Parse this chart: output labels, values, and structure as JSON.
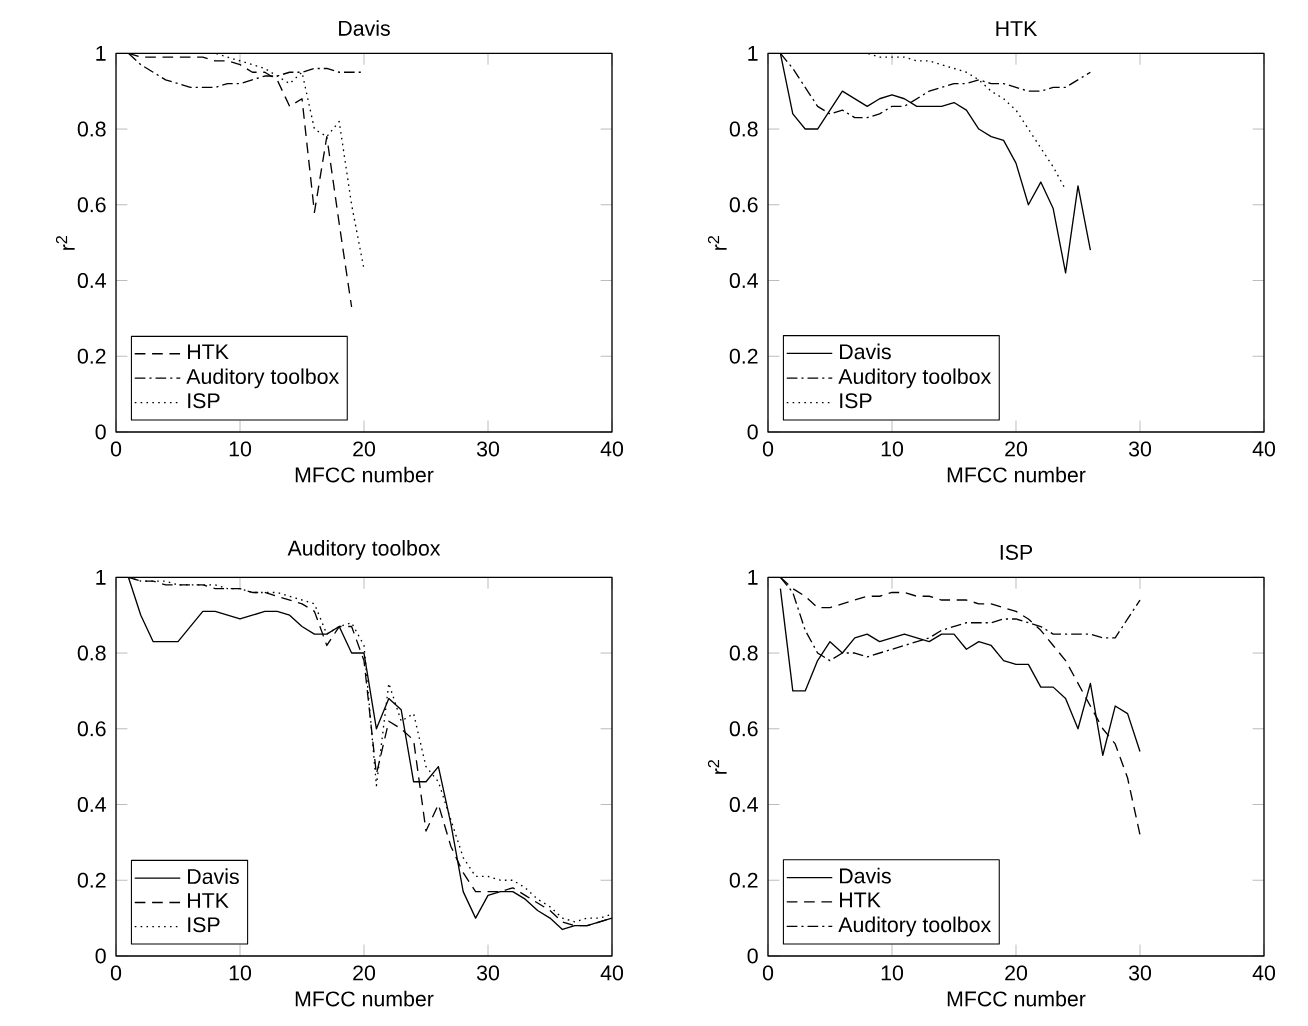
{
  "chart_data": [
    {
      "type": "line",
      "title": "Davis",
      "xlabel": "MFCC number",
      "ylabel": "r$^{2}$",
      "xlim": [
        0,
        40
      ],
      "ylim": [
        0,
        1
      ],
      "xticks": [
        0,
        10,
        20,
        30,
        40
      ],
      "yticks": [
        0,
        0.2,
        0.4,
        0.6,
        0.8,
        1
      ],
      "legend": "bottom left",
      "series": [
        {
          "name": "HTK",
          "color": "#000000",
          "line_style": "dashed",
          "x": [
            1,
            2,
            3,
            4,
            5,
            6,
            7,
            8,
            9,
            10,
            11,
            12,
            13,
            14,
            15,
            16,
            17,
            18,
            19
          ],
          "values": [
            1,
            0.99,
            0.99,
            0.99,
            0.99,
            0.99,
            0.99,
            0.98,
            0.98,
            0.97,
            0.95,
            0.95,
            0.93,
            0.86,
            0.88,
            0.58,
            0.78,
            0.55,
            0.33
          ]
        },
        {
          "name": "Auditory toolbox",
          "color": "#000000",
          "line_style": "dashdot",
          "x": [
            1,
            2,
            3,
            4,
            5,
            6,
            7,
            8,
            9,
            10,
            11,
            12,
            13,
            14,
            15,
            16,
            17,
            18,
            19,
            20
          ],
          "values": [
            1,
            0.97,
            0.95,
            0.93,
            0.92,
            0.91,
            0.91,
            0.91,
            0.92,
            0.92,
            0.93,
            0.94,
            0.94,
            0.95,
            0.95,
            0.96,
            0.96,
            0.95,
            0.95,
            0.95
          ]
        },
        {
          "name": "ISP",
          "color": "#000000",
          "line_style": "dotted",
          "x": [
            1,
            2,
            3,
            4,
            5,
            6,
            7,
            8,
            9,
            10,
            11,
            12,
            13,
            14,
            15,
            16,
            17,
            18,
            19,
            20
          ],
          "values": [
            1,
            1,
            1,
            1,
            1,
            1,
            1,
            1,
            0.99,
            0.98,
            0.97,
            0.96,
            0.94,
            0.92,
            0.95,
            0.8,
            0.78,
            0.82,
            0.6,
            0.43
          ]
        }
      ]
    },
    {
      "type": "line",
      "title": "HTK",
      "xlabel": "MFCC number",
      "ylabel": "r$^{2}$",
      "xlim": [
        0,
        40
      ],
      "ylim": [
        0,
        1
      ],
      "xticks": [
        0,
        10,
        20,
        30,
        40
      ],
      "yticks": [
        0,
        0.2,
        0.4,
        0.6,
        0.8,
        1
      ],
      "legend": "bottom left",
      "series": [
        {
          "name": "Davis",
          "color": "#000000",
          "line_style": "solid",
          "x": [
            1,
            2,
            3,
            4,
            5,
            6,
            7,
            8,
            9,
            10,
            11,
            12,
            13,
            14,
            15,
            16,
            17,
            18,
            19,
            20,
            21,
            22,
            23,
            24,
            25,
            26
          ],
          "values": [
            1,
            0.84,
            0.8,
            0.8,
            0.85,
            0.9,
            0.88,
            0.86,
            0.88,
            0.89,
            0.88,
            0.86,
            0.86,
            0.86,
            0.87,
            0.85,
            0.8,
            0.78,
            0.77,
            0.71,
            0.6,
            0.66,
            0.59,
            0.42,
            0.65,
            0.48
          ]
        },
        {
          "name": "Auditory toolbox",
          "color": "#000000",
          "line_style": "dashdot",
          "x": [
            1,
            2,
            3,
            4,
            5,
            6,
            7,
            8,
            9,
            10,
            11,
            12,
            13,
            14,
            15,
            16,
            17,
            18,
            19,
            20,
            21,
            22,
            23,
            24,
            25,
            26
          ],
          "values": [
            1,
            0.96,
            0.91,
            0.86,
            0.84,
            0.85,
            0.83,
            0.83,
            0.84,
            0.86,
            0.86,
            0.88,
            0.9,
            0.91,
            0.92,
            0.92,
            0.93,
            0.92,
            0.92,
            0.91,
            0.9,
            0.9,
            0.91,
            0.91,
            0.93,
            0.95
          ]
        },
        {
          "name": "ISP",
          "color": "#000000",
          "line_style": "dotted",
          "x": [
            1,
            2,
            3,
            4,
            5,
            6,
            7,
            8,
            9,
            10,
            11,
            12,
            13,
            14,
            15,
            16,
            17,
            18,
            19,
            20,
            21,
            22,
            23,
            24
          ],
          "values": [
            1,
            1,
            1,
            1,
            1,
            1,
            1,
            1,
            0.99,
            0.99,
            0.99,
            0.98,
            0.98,
            0.97,
            0.96,
            0.95,
            0.93,
            0.9,
            0.88,
            0.85,
            0.8,
            0.75,
            0.7,
            0.64
          ]
        }
      ]
    },
    {
      "type": "line",
      "title": "Auditory toolbox",
      "xlabel": "MFCC number",
      "xlim": [
        0,
        40
      ],
      "ylim": [
        0,
        1
      ],
      "xticks": [
        0,
        10,
        20,
        30,
        40
      ],
      "yticks": [
        0,
        0.2,
        0.4,
        0.6,
        0.8,
        1
      ],
      "legend": "bottom left",
      "series": [
        {
          "name": "Davis",
          "color": "#000000",
          "line_style": "solid",
          "x": [
            1,
            2,
            3,
            4,
            5,
            6,
            7,
            8,
            9,
            10,
            11,
            12,
            13,
            14,
            15,
            16,
            17,
            18,
            19,
            20,
            21,
            22,
            23,
            24,
            25,
            26,
            27,
            28,
            29,
            30,
            31,
            32,
            33,
            34,
            35,
            36,
            37,
            38,
            39,
            40
          ],
          "values": [
            1,
            0.9,
            0.83,
            0.83,
            0.83,
            0.87,
            0.91,
            0.91,
            0.9,
            0.89,
            0.9,
            0.91,
            0.91,
            0.9,
            0.87,
            0.85,
            0.85,
            0.87,
            0.8,
            0.8,
            0.6,
            0.68,
            0.65,
            0.46,
            0.46,
            0.5,
            0.35,
            0.17,
            0.1,
            0.16,
            0.17,
            0.17,
            0.15,
            0.12,
            0.1,
            0.07,
            0.08,
            0.08,
            0.09,
            0.1
          ]
        },
        {
          "name": "HTK",
          "color": "#000000",
          "line_style": "dashed",
          "x": [
            1,
            2,
            3,
            4,
            5,
            6,
            7,
            8,
            9,
            10,
            11,
            12,
            13,
            14,
            15,
            16,
            17,
            18,
            19,
            20,
            21,
            22,
            23,
            24,
            25,
            26,
            27,
            28,
            29,
            30,
            31,
            32,
            33,
            34,
            35,
            36,
            37,
            38,
            39,
            40
          ],
          "values": [
            1,
            0.99,
            0.99,
            0.98,
            0.98,
            0.98,
            0.98,
            0.97,
            0.97,
            0.97,
            0.96,
            0.96,
            0.95,
            0.94,
            0.93,
            0.91,
            0.82,
            0.87,
            0.87,
            0.78,
            0.48,
            0.62,
            0.6,
            0.57,
            0.33,
            0.4,
            0.29,
            0.22,
            0.17,
            0.17,
            0.17,
            0.18,
            0.16,
            0.14,
            0.12,
            0.09,
            0.08,
            0.08,
            0.09,
            0.1
          ]
        },
        {
          "name": "ISP",
          "color": "#000000",
          "line_style": "dotted",
          "x": [
            1,
            2,
            3,
            4,
            5,
            6,
            7,
            8,
            9,
            10,
            11,
            12,
            13,
            14,
            15,
            16,
            17,
            18,
            19,
            20,
            21,
            22,
            23,
            24,
            25,
            26,
            27,
            28,
            29,
            30,
            31,
            32,
            33,
            34,
            35,
            36,
            37,
            38,
            39,
            40
          ],
          "values": [
            1,
            0.99,
            0.99,
            0.99,
            0.98,
            0.98,
            0.98,
            0.98,
            0.97,
            0.97,
            0.96,
            0.96,
            0.96,
            0.95,
            0.94,
            0.93,
            0.85,
            0.87,
            0.88,
            0.82,
            0.45,
            0.72,
            0.62,
            0.64,
            0.5,
            0.46,
            0.36,
            0.26,
            0.21,
            0.21,
            0.2,
            0.2,
            0.18,
            0.15,
            0.13,
            0.1,
            0.09,
            0.1,
            0.1,
            0.11
          ]
        }
      ]
    },
    {
      "type": "line",
      "title": "ISP",
      "xlabel": "MFCC number",
      "ylabel": "r$^{2}$",
      "xlim": [
        0,
        40
      ],
      "ylim": [
        0,
        1
      ],
      "xticks": [
        0,
        10,
        20,
        30,
        40
      ],
      "yticks": [
        0,
        0.2,
        0.4,
        0.6,
        0.8,
        1
      ],
      "legend": "bottom left",
      "series": [
        {
          "name": "Davis",
          "color": "#000000",
          "line_style": "solid",
          "x": [
            1,
            2,
            3,
            4,
            5,
            6,
            7,
            8,
            9,
            10,
            11,
            12,
            13,
            14,
            15,
            16,
            17,
            18,
            19,
            20,
            21,
            22,
            23,
            24,
            25,
            26,
            27,
            28,
            29,
            30
          ],
          "values": [
            0.97,
            0.7,
            0.7,
            0.78,
            0.83,
            0.8,
            0.84,
            0.85,
            0.83,
            0.84,
            0.85,
            0.84,
            0.83,
            0.85,
            0.85,
            0.81,
            0.83,
            0.82,
            0.78,
            0.77,
            0.77,
            0.71,
            0.71,
            0.68,
            0.6,
            0.72,
            0.53,
            0.66,
            0.64,
            0.54
          ]
        },
        {
          "name": "HTK",
          "color": "#000000",
          "line_style": "dashed",
          "x": [
            1,
            2,
            3,
            4,
            5,
            6,
            7,
            8,
            9,
            10,
            11,
            12,
            13,
            14,
            15,
            16,
            17,
            18,
            19,
            20,
            21,
            22,
            23,
            24,
            25,
            26,
            27,
            28,
            29,
            30
          ],
          "values": [
            1,
            0.97,
            0.95,
            0.92,
            0.92,
            0.93,
            0.94,
            0.95,
            0.95,
            0.96,
            0.96,
            0.95,
            0.95,
            0.94,
            0.94,
            0.94,
            0.93,
            0.93,
            0.92,
            0.91,
            0.89,
            0.86,
            0.82,
            0.78,
            0.72,
            0.66,
            0.6,
            0.56,
            0.47,
            0.32
          ]
        },
        {
          "name": "Auditory toolbox",
          "color": "#000000",
          "line_style": "dashdot",
          "x": [
            1,
            2,
            3,
            4,
            5,
            6,
            7,
            8,
            9,
            10,
            11,
            12,
            13,
            14,
            15,
            16,
            17,
            18,
            19,
            20,
            21,
            22,
            23,
            24,
            25,
            26,
            27,
            28,
            29,
            30
          ],
          "values": [
            1,
            0.96,
            0.86,
            0.8,
            0.78,
            0.8,
            0.8,
            0.79,
            0.8,
            0.81,
            0.82,
            0.83,
            0.84,
            0.86,
            0.87,
            0.88,
            0.88,
            0.88,
            0.89,
            0.89,
            0.88,
            0.87,
            0.85,
            0.85,
            0.85,
            0.85,
            0.84,
            0.84,
            0.89,
            0.94
          ]
        }
      ]
    }
  ]
}
